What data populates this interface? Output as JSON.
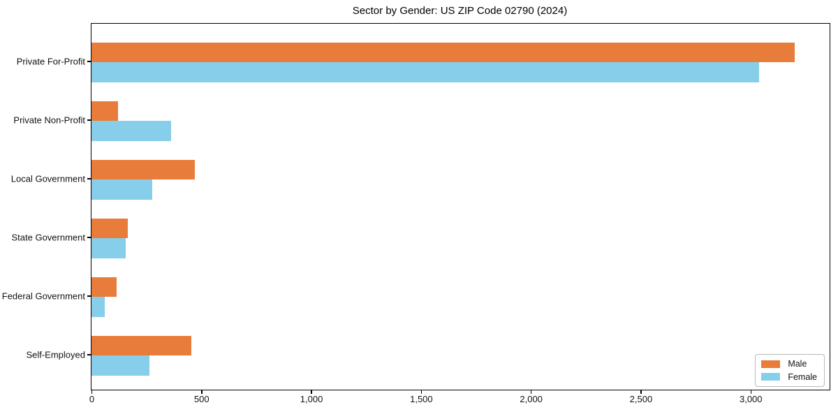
{
  "chart_data": {
    "type": "bar",
    "orientation": "horizontal",
    "title": "Sector by Gender: US ZIP Code 02790 (2024)",
    "xlabel": "",
    "ylabel": "",
    "categories": [
      "Private For-Profit",
      "Private Non-Profit",
      "Local Government",
      "State Government",
      "Federal Government",
      "Self-Employed"
    ],
    "series": [
      {
        "name": "Male",
        "color": "#e87d3b",
        "values": [
          3200,
          120,
          470,
          165,
          115,
          455
        ]
      },
      {
        "name": "Female",
        "color": "#87ceeb",
        "values": [
          3040,
          363,
          277,
          157,
          60,
          265
        ]
      }
    ],
    "xlim": [
      0,
      3360
    ],
    "x_ticks": [
      0,
      500,
      1000,
      1500,
      2000,
      2500,
      3000
    ],
    "x_tick_labels": [
      "0",
      "500",
      "1,000",
      "1,500",
      "2,000",
      "2,500",
      "3,000"
    ],
    "grid": false,
    "legend_position": "lower right"
  },
  "legend": {
    "items": [
      {
        "label": "Male",
        "color": "#e87d3b"
      },
      {
        "label": "Female",
        "color": "#87ceeb"
      }
    ]
  }
}
